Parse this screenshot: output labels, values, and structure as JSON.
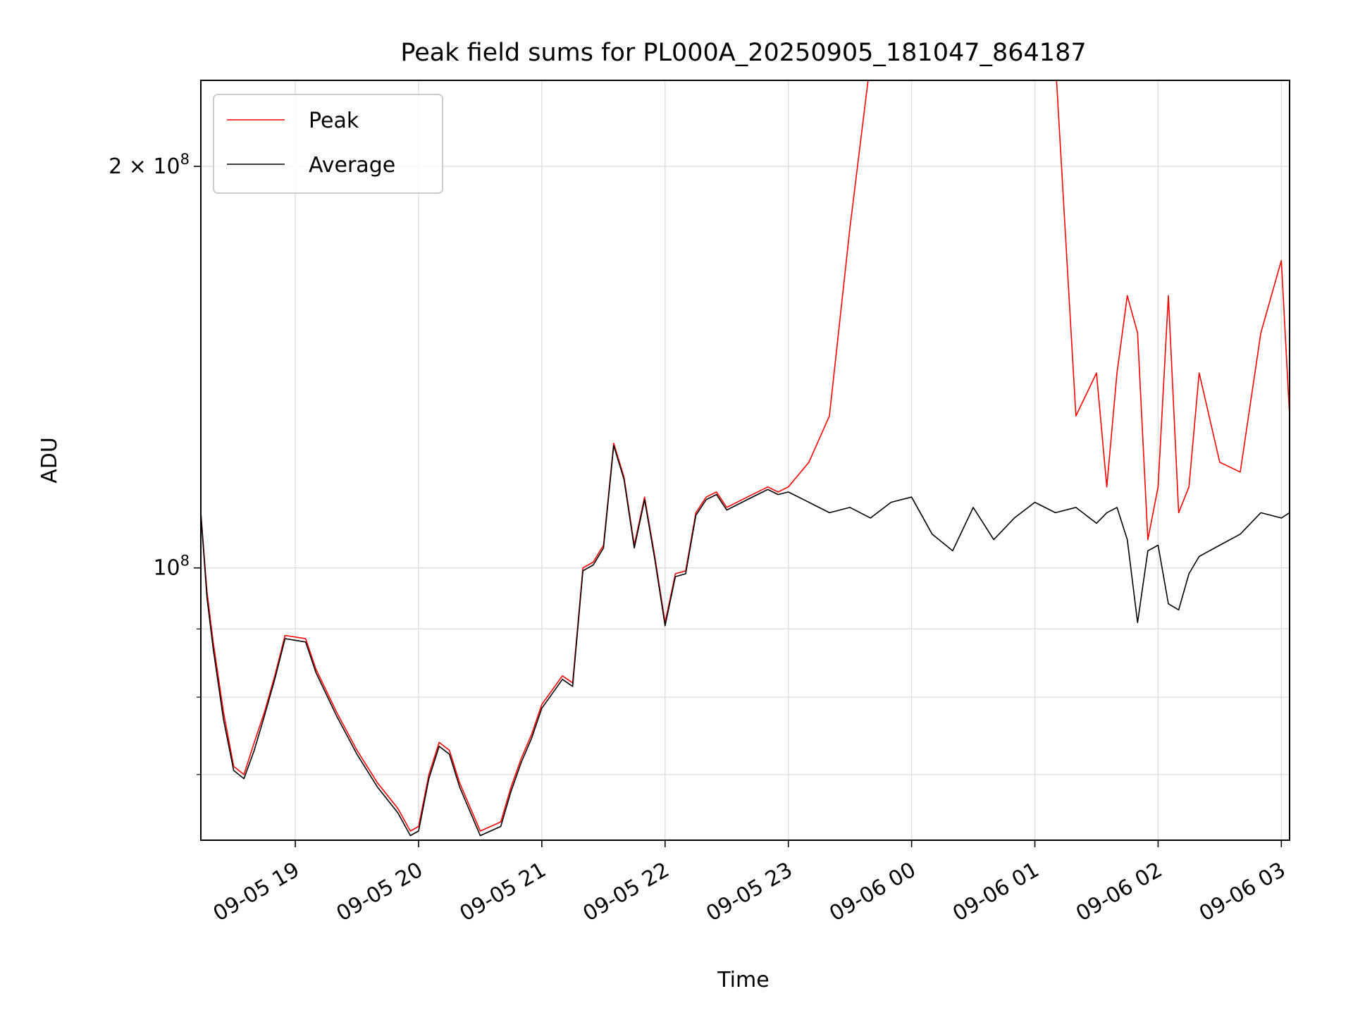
{
  "chart_data": {
    "type": "line",
    "title": "Peak field sums for PL000A_20250905_181047_864187",
    "xlabel": "Time",
    "ylabel": "ADU",
    "y_scale": "log",
    "ylim": [
      62500000,
      232000000
    ],
    "xlim": [
      "2025-09-05 18:14",
      "2025-09-06 03:04"
    ],
    "grid": true,
    "legend_position": "top-left",
    "x_ticks": [
      {
        "t": "2025-09-05 19:00",
        "label": "09-05 19"
      },
      {
        "t": "2025-09-05 20:00",
        "label": "09-05 20"
      },
      {
        "t": "2025-09-05 21:00",
        "label": "09-05 21"
      },
      {
        "t": "2025-09-05 22:00",
        "label": "09-05 22"
      },
      {
        "t": "2025-09-05 23:00",
        "label": "09-05 23"
      },
      {
        "t": "2025-09-06 00:00",
        "label": "09-06 00"
      },
      {
        "t": "2025-09-06 01:00",
        "label": "09-06 01"
      },
      {
        "t": "2025-09-06 02:00",
        "label": "09-06 02"
      },
      {
        "t": "2025-09-06 03:00",
        "label": "09-06 03"
      }
    ],
    "y_ticks_major": [
      {
        "v": 100000000,
        "base": "10",
        "exp": "8",
        "mult": ""
      },
      {
        "v": 200000000,
        "base": "10",
        "exp": "8",
        "mult": "2 × "
      }
    ],
    "y_ticks_minor": [
      70000000,
      80000000,
      90000000
    ],
    "series": [
      {
        "name": "Peak",
        "color": "#ff0000",
        "x": [
          "2025-09-05 18:14",
          "2025-09-05 18:17",
          "2025-09-05 18:20",
          "2025-09-05 18:25",
          "2025-09-05 18:30",
          "2025-09-05 18:35",
          "2025-09-05 18:40",
          "2025-09-05 18:45",
          "2025-09-05 18:50",
          "2025-09-05 18:55",
          "2025-09-05 19:05",
          "2025-09-05 19:10",
          "2025-09-05 19:20",
          "2025-09-05 19:30",
          "2025-09-05 19:40",
          "2025-09-05 19:50",
          "2025-09-05 19:56",
          "2025-09-05 20:00",
          "2025-09-05 20:05",
          "2025-09-05 20:10",
          "2025-09-05 20:15",
          "2025-09-05 20:20",
          "2025-09-05 20:30",
          "2025-09-05 20:40",
          "2025-09-05 20:45",
          "2025-09-05 20:50",
          "2025-09-05 20:55",
          "2025-09-05 21:00",
          "2025-09-05 21:10",
          "2025-09-05 21:15",
          "2025-09-05 21:20",
          "2025-09-05 21:25",
          "2025-09-05 21:30",
          "2025-09-05 21:35",
          "2025-09-05 21:40",
          "2025-09-05 21:45",
          "2025-09-05 21:50",
          "2025-09-05 21:55",
          "2025-09-05 22:00",
          "2025-09-05 22:05",
          "2025-09-05 22:10",
          "2025-09-05 22:15",
          "2025-09-05 22:20",
          "2025-09-05 22:25",
          "2025-09-05 22:30",
          "2025-09-05 22:40",
          "2025-09-05 22:50",
          "2025-09-05 22:55",
          "2025-09-05 23:00",
          "2025-09-05 23:10",
          "2025-09-05 23:20",
          "2025-09-05 23:30",
          "2025-09-05 23:40",
          "2025-09-05 23:50",
          "2025-09-06 00:00",
          "2025-09-06 00:10",
          "2025-09-06 00:20",
          "2025-09-06 00:30",
          "2025-09-06 00:40",
          "2025-09-06 00:50",
          "2025-09-06 01:00",
          "2025-09-06 01:10",
          "2025-09-06 01:20",
          "2025-09-06 01:30",
          "2025-09-06 01:35",
          "2025-09-06 01:40",
          "2025-09-06 01:45",
          "2025-09-06 01:50",
          "2025-09-06 01:55",
          "2025-09-06 02:00",
          "2025-09-06 02:05",
          "2025-09-06 02:10",
          "2025-09-06 02:15",
          "2025-09-06 02:20",
          "2025-09-06 02:30",
          "2025-09-06 02:40",
          "2025-09-06 02:50",
          "2025-09-06 03:00",
          "2025-09-06 03:04"
        ],
        "values": [
          110000000,
          96000000,
          88000000,
          78000000,
          71000000,
          70000000,
          74000000,
          78000000,
          83000000,
          89000000,
          88500000,
          84000000,
          78000000,
          73000000,
          69000000,
          66000000,
          63500000,
          64000000,
          70000000,
          74000000,
          73000000,
          69000000,
          63500000,
          64500000,
          68500000,
          72000000,
          75000000,
          79000000,
          83000000,
          82000000,
          100000000,
          101000000,
          104000000,
          124000000,
          117000000,
          104000000,
          113000000,
          102000000,
          91000000,
          99000000,
          99500000,
          110000000,
          113000000,
          114000000,
          111000000,
          113000000,
          115000000,
          114000000,
          115000000,
          120000000,
          130000000,
          180000000,
          240000000,
          240000000,
          240000000,
          240000000,
          240000000,
          240000000,
          240000000,
          240000000,
          240000000,
          240000000,
          130000000,
          140000000,
          115000000,
          140000000,
          160000000,
          150000000,
          105000000,
          115000000,
          160000000,
          110000000,
          115000000,
          140000000,
          120000000,
          118000000,
          150000000,
          170000000,
          130000000
        ]
      },
      {
        "name": "Average",
        "color": "#000000",
        "x": [
          "2025-09-05 18:14",
          "2025-09-05 18:17",
          "2025-09-05 18:20",
          "2025-09-05 18:25",
          "2025-09-05 18:30",
          "2025-09-05 18:35",
          "2025-09-05 18:40",
          "2025-09-05 18:45",
          "2025-09-05 18:50",
          "2025-09-05 18:55",
          "2025-09-05 19:05",
          "2025-09-05 19:10",
          "2025-09-05 19:20",
          "2025-09-05 19:30",
          "2025-09-05 19:40",
          "2025-09-05 19:50",
          "2025-09-05 19:56",
          "2025-09-05 20:00",
          "2025-09-05 20:05",
          "2025-09-05 20:10",
          "2025-09-05 20:15",
          "2025-09-05 20:20",
          "2025-09-05 20:30",
          "2025-09-05 20:40",
          "2025-09-05 20:45",
          "2025-09-05 20:50",
          "2025-09-05 20:55",
          "2025-09-05 21:00",
          "2025-09-05 21:10",
          "2025-09-05 21:15",
          "2025-09-05 21:20",
          "2025-09-05 21:25",
          "2025-09-05 21:30",
          "2025-09-05 21:35",
          "2025-09-05 21:40",
          "2025-09-05 21:45",
          "2025-09-05 21:50",
          "2025-09-05 21:55",
          "2025-09-05 22:00",
          "2025-09-05 22:05",
          "2025-09-05 22:10",
          "2025-09-05 22:15",
          "2025-09-05 22:20",
          "2025-09-05 22:25",
          "2025-09-05 22:30",
          "2025-09-05 22:40",
          "2025-09-05 22:50",
          "2025-09-05 22:55",
          "2025-09-05 23:00",
          "2025-09-05 23:10",
          "2025-09-05 23:20",
          "2025-09-05 23:30",
          "2025-09-05 23:40",
          "2025-09-05 23:50",
          "2025-09-06 00:00",
          "2025-09-06 00:10",
          "2025-09-06 00:20",
          "2025-09-06 00:30",
          "2025-09-06 00:40",
          "2025-09-06 00:50",
          "2025-09-06 01:00",
          "2025-09-06 01:10",
          "2025-09-06 01:20",
          "2025-09-06 01:30",
          "2025-09-06 01:35",
          "2025-09-06 01:40",
          "2025-09-06 01:45",
          "2025-09-06 01:50",
          "2025-09-06 01:55",
          "2025-09-06 02:00",
          "2025-09-06 02:05",
          "2025-09-06 02:10",
          "2025-09-06 02:15",
          "2025-09-06 02:20",
          "2025-09-06 02:30",
          "2025-09-06 02:40",
          "2025-09-06 02:50",
          "2025-09-06 03:00",
          "2025-09-06 03:04"
        ],
        "values": [
          110000000,
          95000000,
          87000000,
          77000000,
          70500000,
          69500000,
          73000000,
          77500000,
          82500000,
          88500000,
          88000000,
          83500000,
          77500000,
          72500000,
          68500000,
          65500000,
          63000000,
          63500000,
          69500000,
          73500000,
          72500000,
          68500000,
          63000000,
          64000000,
          68000000,
          71500000,
          74500000,
          78500000,
          82500000,
          81500000,
          99500000,
          100500000,
          103500000,
          123500000,
          116500000,
          103500000,
          112500000,
          101500000,
          90500000,
          98500000,
          99000000,
          109500000,
          112500000,
          113500000,
          110500000,
          112500000,
          114500000,
          113500000,
          114000000,
          112000000,
          110000000,
          111000000,
          109000000,
          112000000,
          113000000,
          106000000,
          103000000,
          111000000,
          105000000,
          109000000,
          112000000,
          110000000,
          111000000,
          108000000,
          110000000,
          111000000,
          105000000,
          91000000,
          103000000,
          104000000,
          94000000,
          93000000,
          99000000,
          102000000,
          104000000,
          106000000,
          110000000,
          109000000,
          110000000
        ]
      }
    ]
  }
}
